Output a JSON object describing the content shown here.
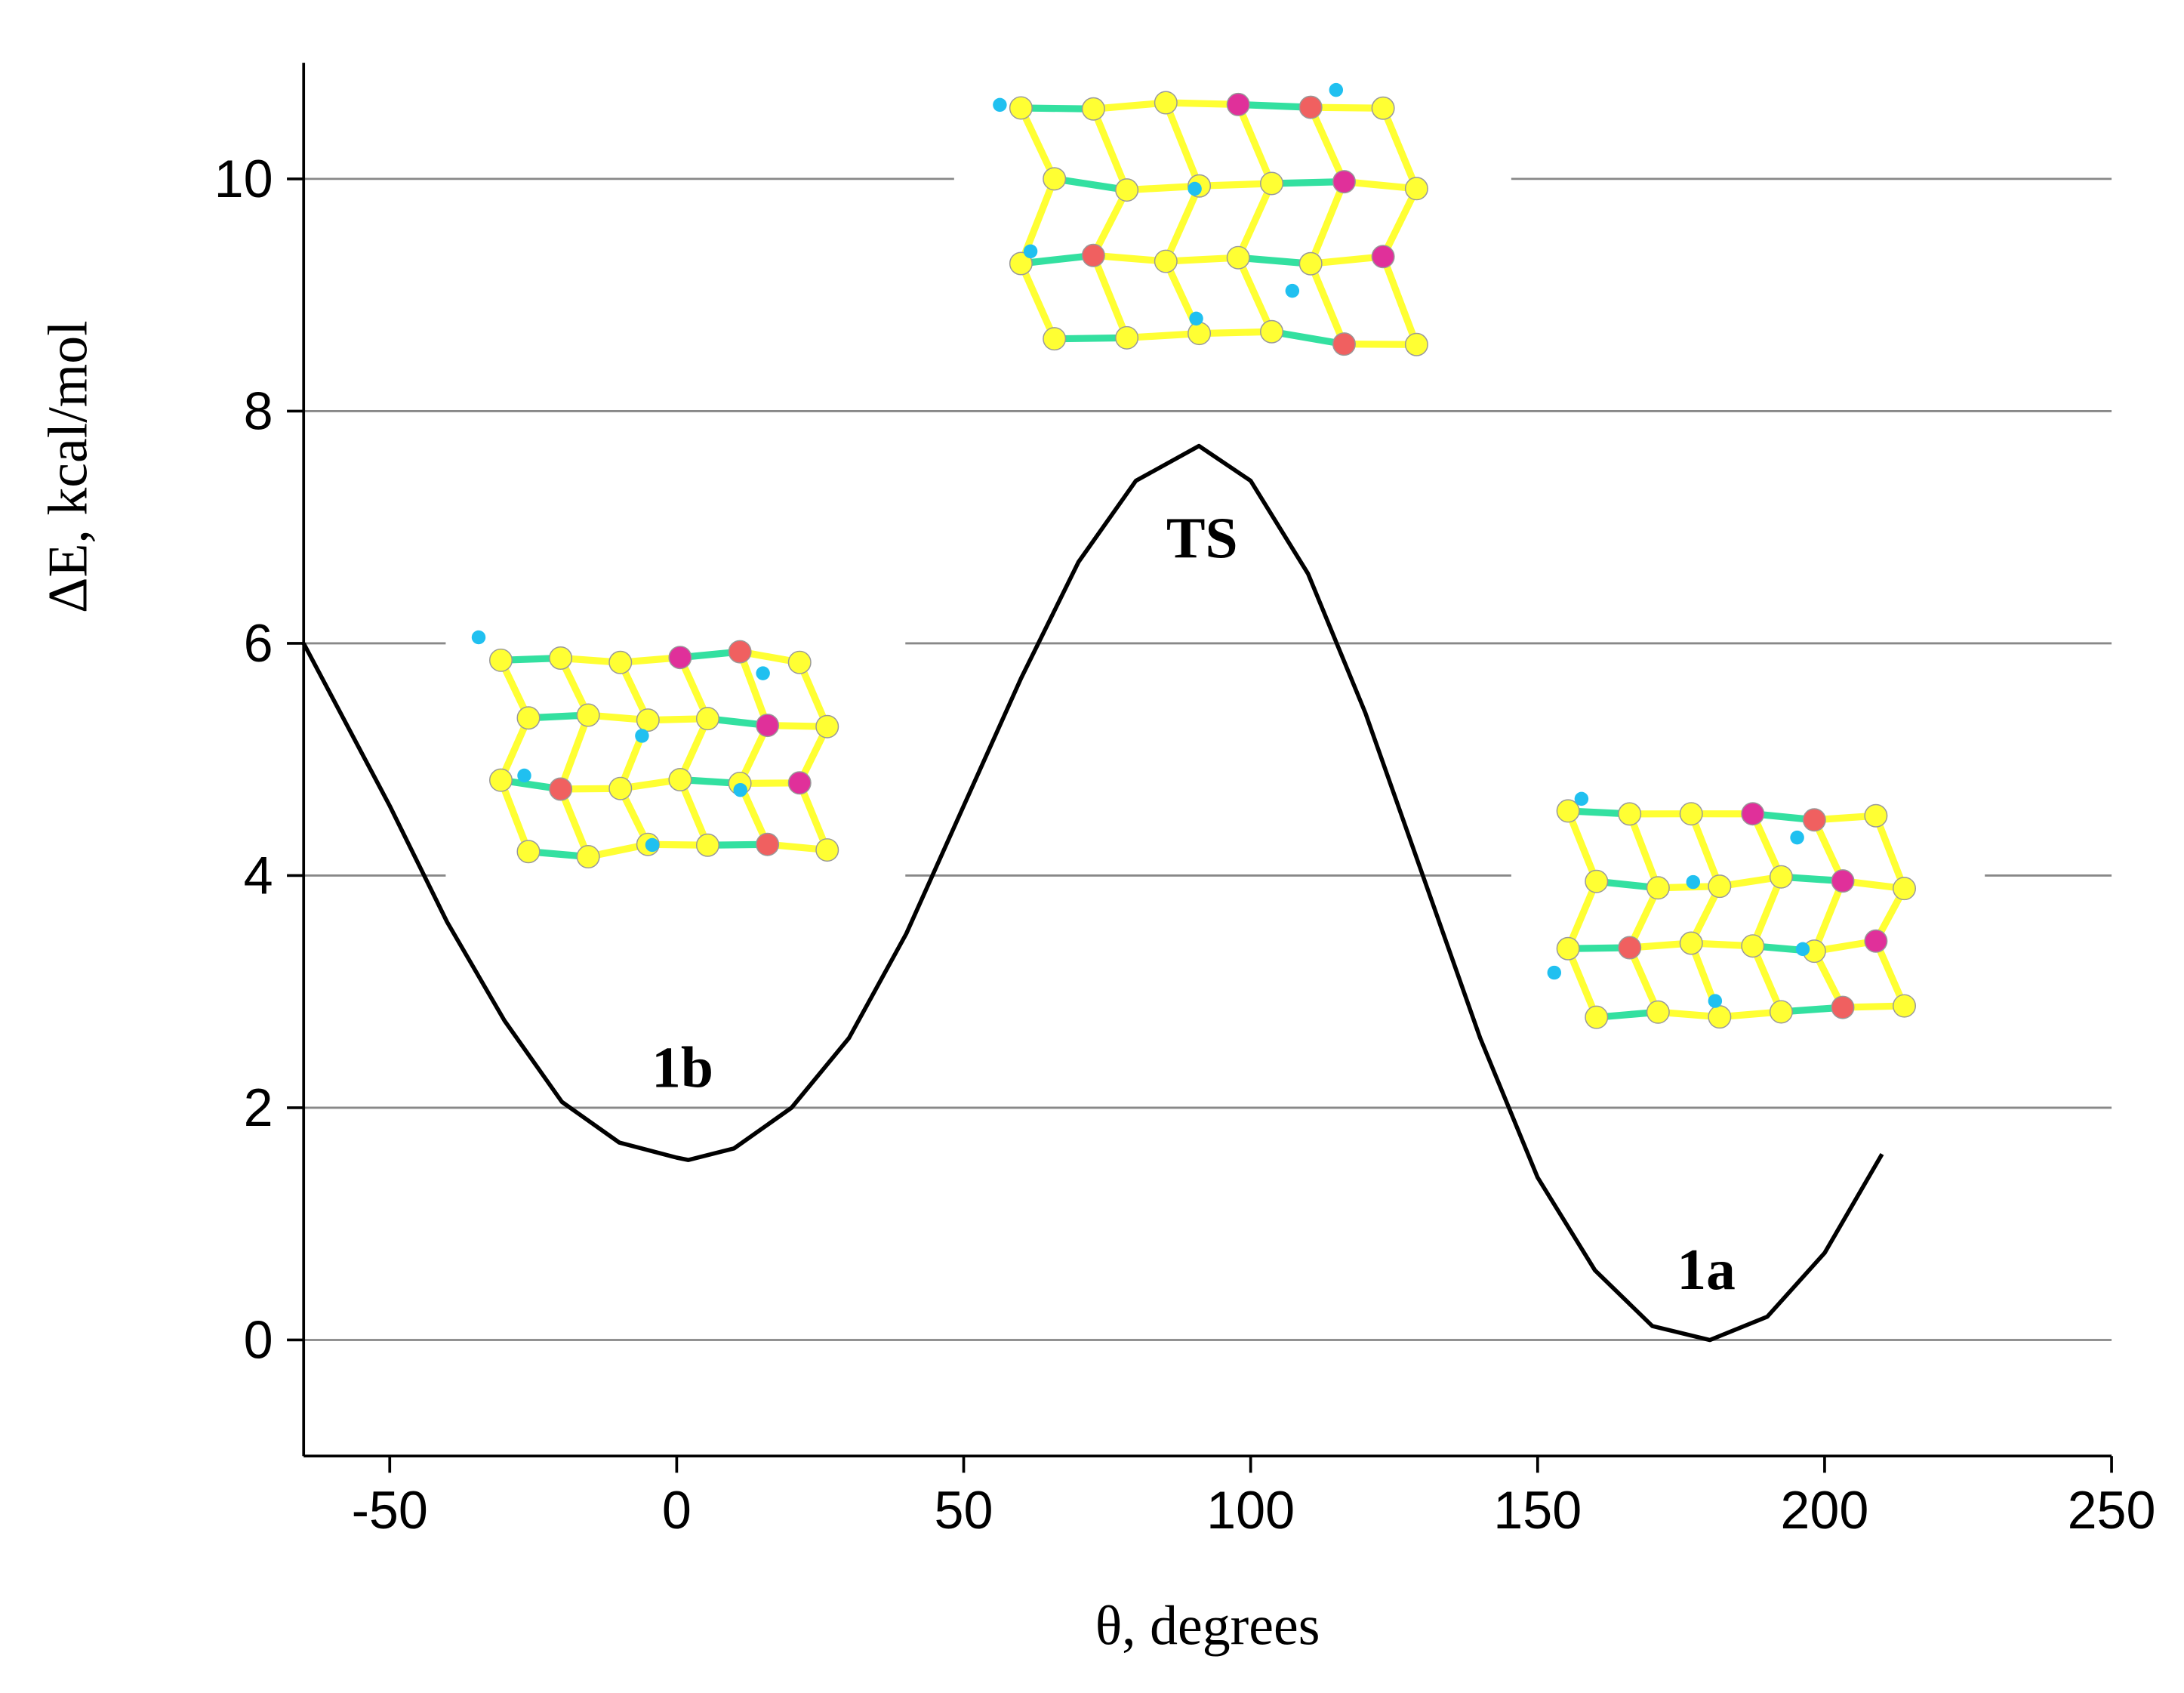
{
  "chart_data": {
    "type": "line",
    "x_label": "θ, degrees",
    "y_label": "ΔE, kcal/mol",
    "x": [
      -65,
      -50,
      -40,
      -30,
      -20,
      -10,
      0,
      2,
      10,
      20,
      30,
      40,
      50,
      60,
      70,
      80,
      91,
      100,
      110,
      120,
      130,
      140,
      150,
      160,
      170,
      180,
      190,
      200,
      210
    ],
    "series": [
      {
        "color": "#000000",
        "values": [
          6.0,
          4.6,
          3.6,
          2.75,
          2.05,
          1.7,
          1.57,
          1.55,
          1.65,
          2.0,
          2.6,
          3.5,
          4.6,
          5.7,
          6.7,
          7.4,
          7.7,
          7.4,
          6.6,
          5.4,
          4.0,
          2.6,
          1.4,
          0.6,
          0.12,
          0,
          0.2,
          0.75,
          1.6
        ]
      }
    ],
    "annotations": [
      "TS",
      "1b",
      "1a"
    ],
    "xlim": [
      -65,
      250
    ],
    "xticks": [
      -50,
      0,
      50,
      100,
      150,
      200,
      250
    ],
    "ylim": [
      -1,
      11
    ],
    "yticks": [
      0,
      2,
      4,
      6,
      8,
      10
    ],
    "grid": true
  }
}
